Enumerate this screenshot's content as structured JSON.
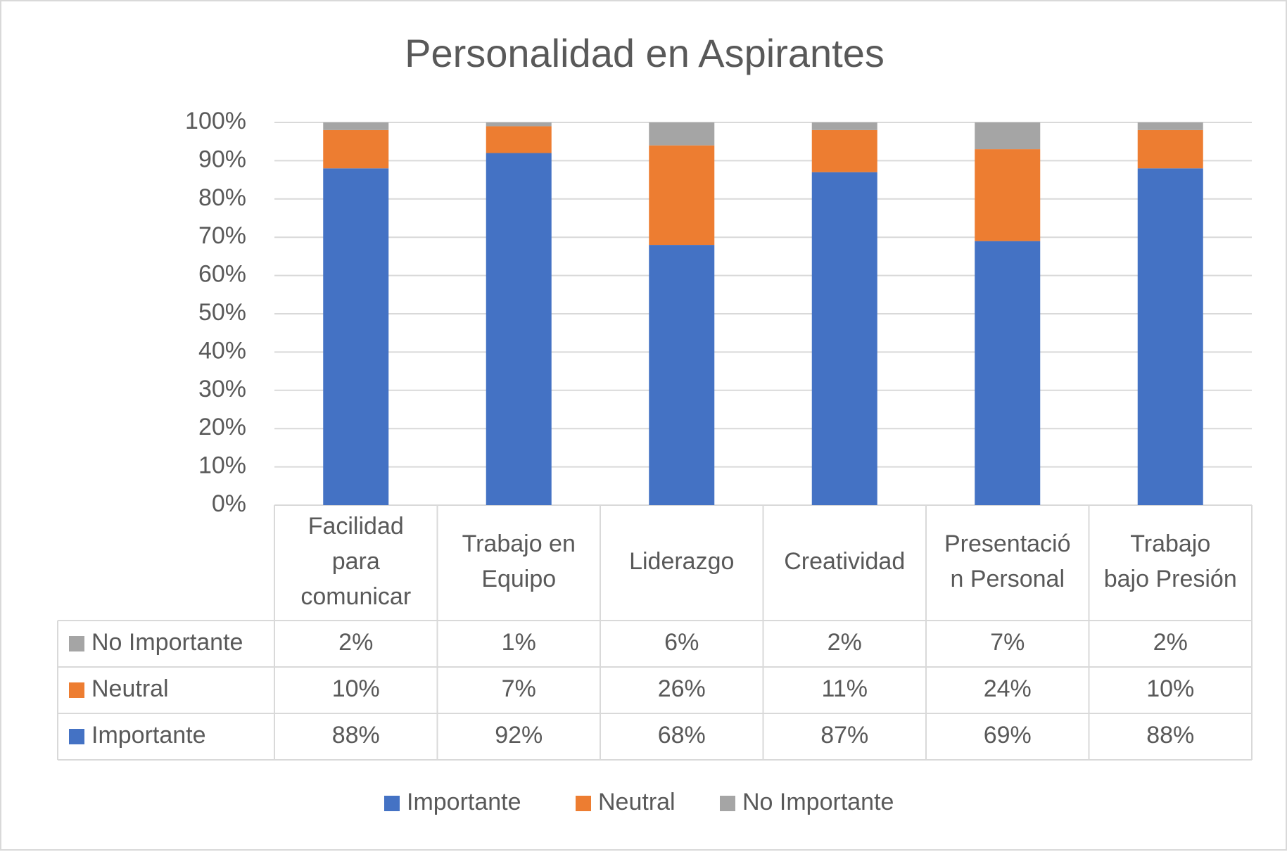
{
  "chart_data": {
    "type": "bar",
    "stacked": "percent",
    "title": "Personalidad en Aspirantes",
    "categories": [
      [
        "Facilidad",
        "para",
        "comunicar"
      ],
      [
        "Trabajo en",
        "Equipo"
      ],
      [
        "Liderazgo"
      ],
      [
        "Creatividad"
      ],
      [
        "Presentació",
        "n Personal"
      ],
      [
        "Trabajo",
        "bajo Presión"
      ]
    ],
    "series": [
      {
        "name": "Importante",
        "color": "#4472c4",
        "values": [
          88,
          92,
          68,
          87,
          69,
          88
        ],
        "labels": [
          "88%",
          "92%",
          "68%",
          "87%",
          "69%",
          "88%"
        ]
      },
      {
        "name": "Neutral",
        "color": "#ed7d31",
        "values": [
          10,
          7,
          26,
          11,
          24,
          10
        ],
        "labels": [
          "10%",
          "7%",
          "26%",
          "11%",
          "24%",
          "10%"
        ]
      },
      {
        "name": "No Importante",
        "color": "#a5a5a5",
        "values": [
          2,
          1,
          6,
          2,
          7,
          2
        ],
        "labels": [
          "2%",
          "1%",
          "6%",
          "2%",
          "7%",
          "2%"
        ]
      }
    ],
    "y_ticks": [
      "0%",
      "10%",
      "20%",
      "30%",
      "40%",
      "50%",
      "60%",
      "70%",
      "80%",
      "90%",
      "100%"
    ],
    "ylim": [
      0,
      100
    ],
    "grid": true,
    "data_table": true,
    "table_row_order": [
      "No Importante",
      "Neutral",
      "Importante"
    ],
    "legend": {
      "position": "bottom",
      "items": [
        "Importante",
        "Neutral",
        "No Importante"
      ]
    }
  }
}
